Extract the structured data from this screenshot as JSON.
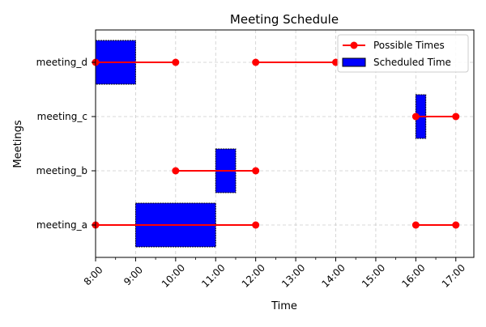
{
  "chart_data": {
    "type": "gantt",
    "title": "Meeting Schedule",
    "xlabel": "Time",
    "ylabel": "Meetings",
    "xlim": [
      8.0,
      17.45
    ],
    "x_ticks": [
      "8:00",
      "9:00",
      "10:00",
      "11:00",
      "12:00",
      "13:00",
      "14:00",
      "15:00",
      "16:00",
      "17:00"
    ],
    "x_minor_ticks": [
      8.5,
      9.5,
      10.5,
      11.5,
      12.5,
      13.5,
      14.5,
      15.5,
      16.5,
      17.5
    ],
    "categories": [
      "meeting_a",
      "meeting_b",
      "meeting_c",
      "meeting_d"
    ],
    "grid": true,
    "legend": {
      "placement": "upper right",
      "entries": [
        {
          "label": "Possible Times",
          "kind": "line-marker",
          "color": "#ff0000"
        },
        {
          "label": "Scheduled Time",
          "kind": "patch",
          "color": "#0000ff"
        }
      ]
    },
    "scheduled": [
      {
        "meeting": "meeting_a",
        "start": 9.0,
        "end": 11.0
      },
      {
        "meeting": "meeting_b",
        "start": 11.0,
        "end": 11.5
      },
      {
        "meeting": "meeting_c",
        "start": 16.0,
        "end": 16.25
      },
      {
        "meeting": "meeting_d",
        "start": 8.0,
        "end": 9.0
      }
    ],
    "possible": [
      {
        "meeting": "meeting_a",
        "start": 8.0,
        "end": 12.0
      },
      {
        "meeting": "meeting_a",
        "start": 16.0,
        "end": 17.0
      },
      {
        "meeting": "meeting_b",
        "start": 10.0,
        "end": 12.0
      },
      {
        "meeting": "meeting_c",
        "start": 16.0,
        "end": 17.0
      },
      {
        "meeting": "meeting_d",
        "start": 8.0,
        "end": 10.0
      },
      {
        "meeting": "meeting_d",
        "start": 12.0,
        "end": 14.0
      }
    ],
    "colors": {
      "possible": "#ff0000",
      "scheduled": "#0000ff",
      "grid": "#cccccc"
    }
  }
}
